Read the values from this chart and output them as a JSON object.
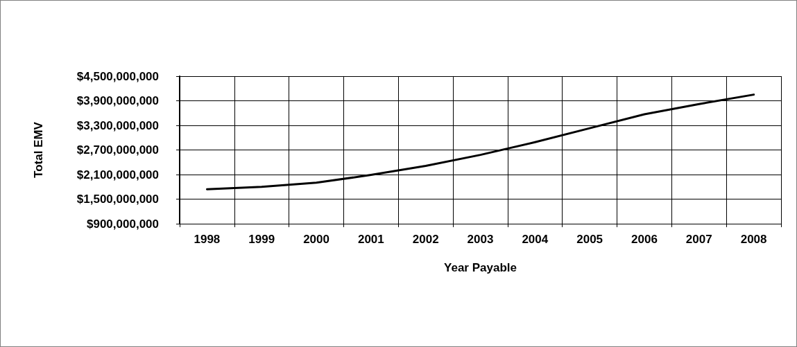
{
  "chart_data": {
    "type": "line",
    "xlabel": "Year Payable",
    "ylabel": "Total EMV",
    "categories": [
      "1998",
      "1999",
      "2000",
      "2001",
      "2002",
      "2003",
      "2004",
      "2005",
      "2006",
      "2007",
      "2008"
    ],
    "values": [
      1740000000,
      1800000000,
      1900000000,
      2090000000,
      2310000000,
      2580000000,
      2890000000,
      3230000000,
      3570000000,
      3820000000,
      4050000000
    ],
    "color": "#000000",
    "ylim": [
      900000000,
      4500000000
    ],
    "yticks": [
      {
        "value": 900000000,
        "label": "$900,000,000"
      },
      {
        "value": 1500000000,
        "label": "$1,500,000,000"
      },
      {
        "value": 2100000000,
        "label": "$2,100,000,000"
      },
      {
        "value": 2700000000,
        "label": "$2,700,000,000"
      },
      {
        "value": 3300000000,
        "label": "$3,300,000,000"
      },
      {
        "value": 3900000000,
        "label": "$3,900,000,000"
      },
      {
        "value": 4500000000,
        "label": "$4,500,000,000"
      }
    ],
    "grid": true,
    "marker": "none",
    "line_style": "solid"
  }
}
